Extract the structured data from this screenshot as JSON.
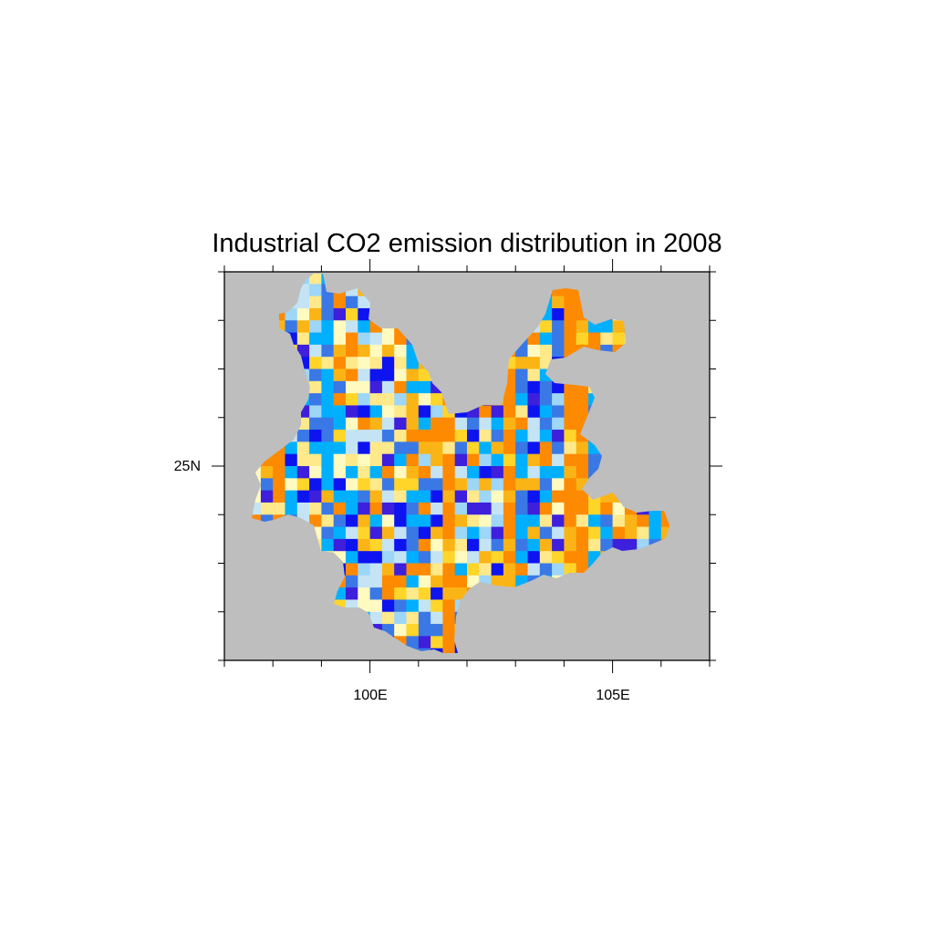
{
  "title": "Industrial CO2 emission distribution in 2008",
  "axes": {
    "x_tick_labels": [
      "100E",
      "105E"
    ],
    "y_tick_labels": [
      "25N"
    ],
    "lon_range": [
      97,
      107
    ],
    "lat_range": [
      21,
      29
    ]
  },
  "colors": {
    "background": "#ffffff",
    "ocean_missing": "#bebebe",
    "palette": [
      "#3d1fdc",
      "#0d14f0",
      "#3a78e6",
      "#00b0ff",
      "#9dd6f7",
      "#c4e4f5",
      "#fffac0",
      "#ffe98a",
      "#ffd52a",
      "#fbb416",
      "#fd8a00"
    ]
  },
  "chart_data": {
    "type": "heatmap",
    "title": "Industrial CO2 emission distribution in 2008",
    "xlabel": "",
    "ylabel": "",
    "x_tick_labels": [
      "100E",
      "105E"
    ],
    "y_tick_labels": [
      "25N"
    ],
    "lon_range": [
      97,
      107
    ],
    "lat_range": [
      21,
      29
    ],
    "grid_resolution_deg": 0.25,
    "region": "Yunnan Province",
    "legend": "none"
  }
}
